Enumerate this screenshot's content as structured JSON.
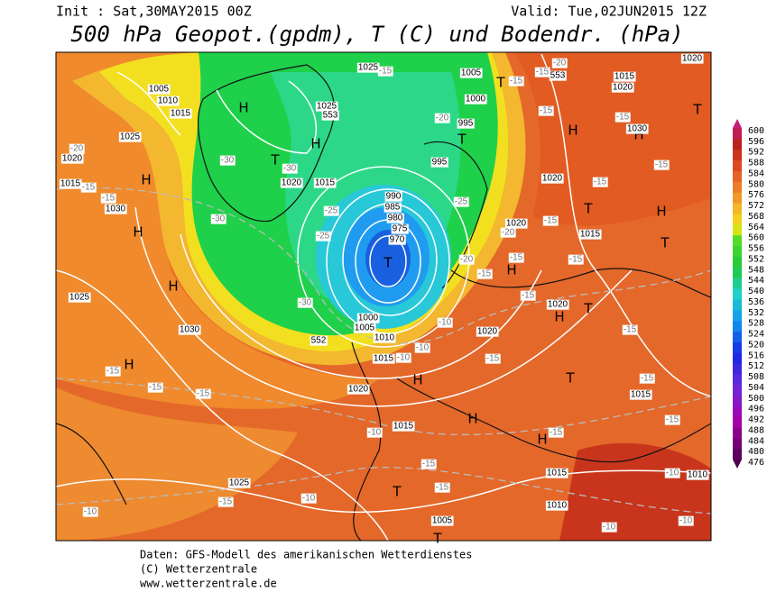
{
  "header": {
    "init": "Init : Sat,30MAY2015 00Z",
    "valid": "Valid: Tue,02JUN2015 12Z",
    "title": "500 hPa Geopot.(gpdm), T (C) und Bodendr. (hPa)"
  },
  "colorbar": {
    "levels": [
      476,
      480,
      484,
      488,
      492,
      496,
      500,
      504,
      508,
      512,
      516,
      520,
      524,
      528,
      532,
      536,
      540,
      544,
      548,
      552,
      556,
      560,
      564,
      568,
      572,
      576,
      580,
      584,
      588,
      592,
      596,
      600
    ]
  },
  "map": {
    "highs_lows": [
      "H",
      "H",
      "T",
      "H",
      "H",
      "H",
      "H",
      "T",
      "T",
      "T",
      "H",
      "H",
      "T",
      "T",
      "H",
      "T",
      "H",
      "H",
      "T",
      "T",
      "H",
      "H",
      "H",
      "T",
      "T"
    ],
    "isobar_labels": [
      "1025",
      "1005",
      "1000",
      "995",
      "995",
      "1005",
      "1010",
      "1015",
      "1025",
      "1020",
      "1015",
      "1030",
      "1025",
      "1030",
      "1020",
      "1015",
      "1010",
      "1005",
      "1000",
      "990",
      "985",
      "980",
      "975",
      "970",
      "1020",
      "1015",
      "1025",
      "1020",
      "1015",
      "1020",
      "1020",
      "1020",
      "1015",
      "1015",
      "1015",
      "1025",
      "1010",
      "1005",
      "1010",
      "1020",
      "1015",
      "1020",
      "1030",
      "553",
      "553",
      "552"
    ],
    "temperature_labels": [
      "-15",
      "-20",
      "-15",
      "-15",
      "-20",
      "-30",
      "-30",
      "-30",
      "-25",
      "-25",
      "-25",
      "-30",
      "-20",
      "-15",
      "-15",
      "-15",
      "-15",
      "-15",
      "-10",
      "-15",
      "-15",
      "-10",
      "-10",
      "-15",
      "-10",
      "-15",
      "-15",
      "-15",
      "-15",
      "-15",
      "-15",
      "-15",
      "-10",
      "-10",
      "-10",
      "-15",
      "-15",
      "-15",
      "-15",
      "-15",
      "-15",
      "-15",
      "-10",
      "-10",
      "-20",
      "-20"
    ]
  },
  "footer": {
    "source": "Daten: GFS-Modell des amerikanischen Wetterdienstes",
    "copyright": "(C) Wetterzentrale",
    "url": "www.wetterzentrale.de"
  }
}
